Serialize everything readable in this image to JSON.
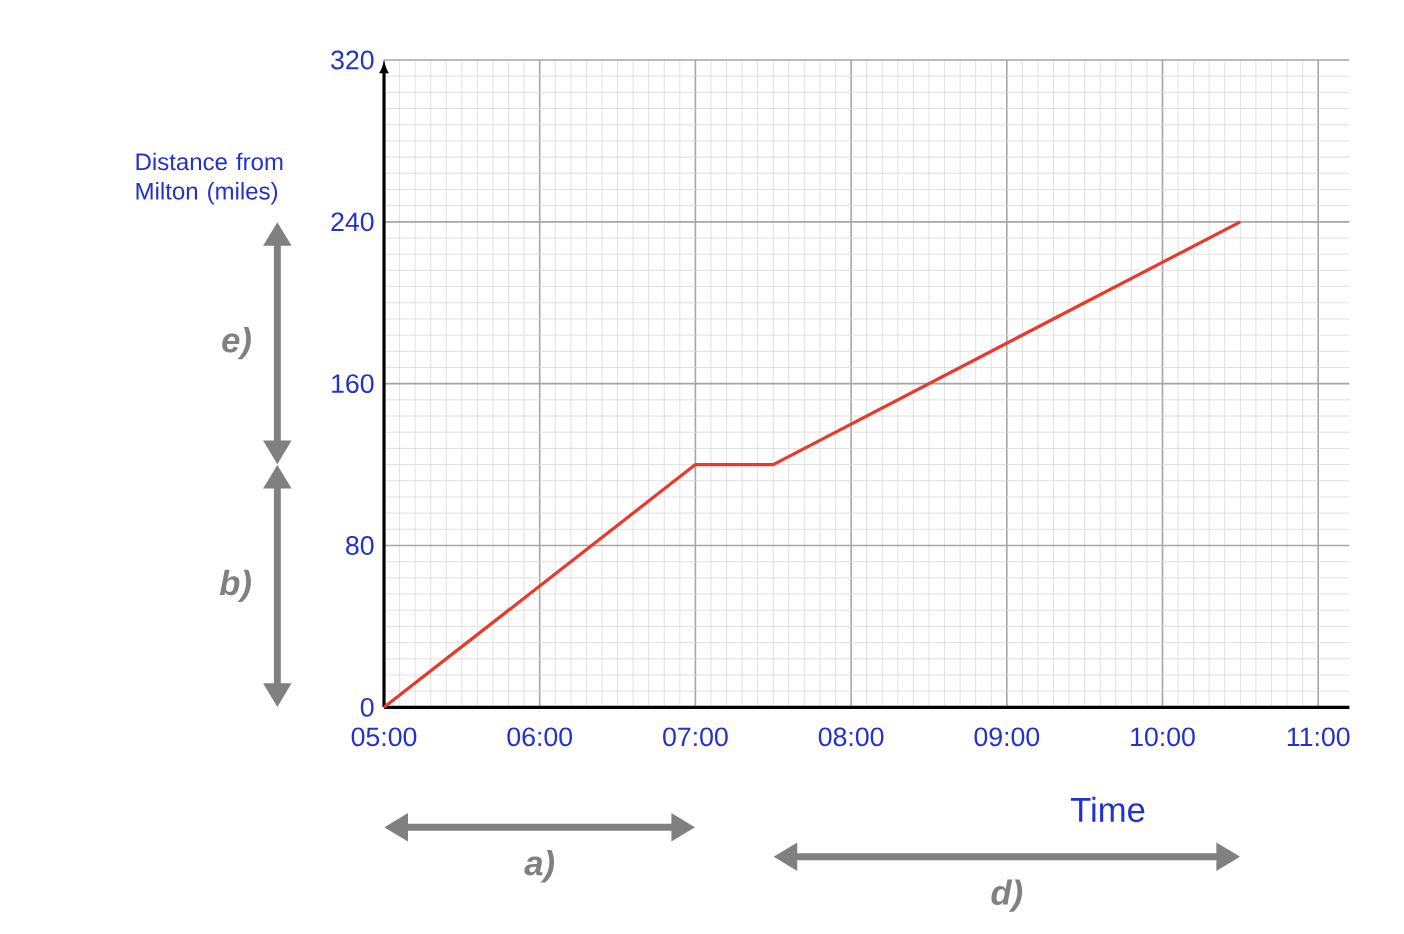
{
  "chart_data": {
    "type": "line",
    "xlabel": "Time",
    "ylabel": "Distance from Milton (miles)",
    "x": [
      5,
      7,
      7.5,
      10.5
    ],
    "values": [
      0,
      120,
      120,
      240
    ],
    "color": "#e8392b",
    "xlim": [
      5,
      11.2
    ],
    "ylim": [
      0,
      320
    ],
    "xticks": [
      {
        "value": 5,
        "label": "05:00"
      },
      {
        "value": 6,
        "label": "06:00"
      },
      {
        "value": 7,
        "label": "07:00"
      },
      {
        "value": 8,
        "label": "08:00"
      },
      {
        "value": 9,
        "label": "09:00"
      },
      {
        "value": 10,
        "label": "10:00"
      },
      {
        "value": 11,
        "label": "11:00"
      }
    ],
    "yticks": [
      0,
      80,
      160,
      240,
      320
    ],
    "grid": true,
    "annotations": [
      "b)",
      "e)",
      "a)",
      "d)"
    ]
  }
}
